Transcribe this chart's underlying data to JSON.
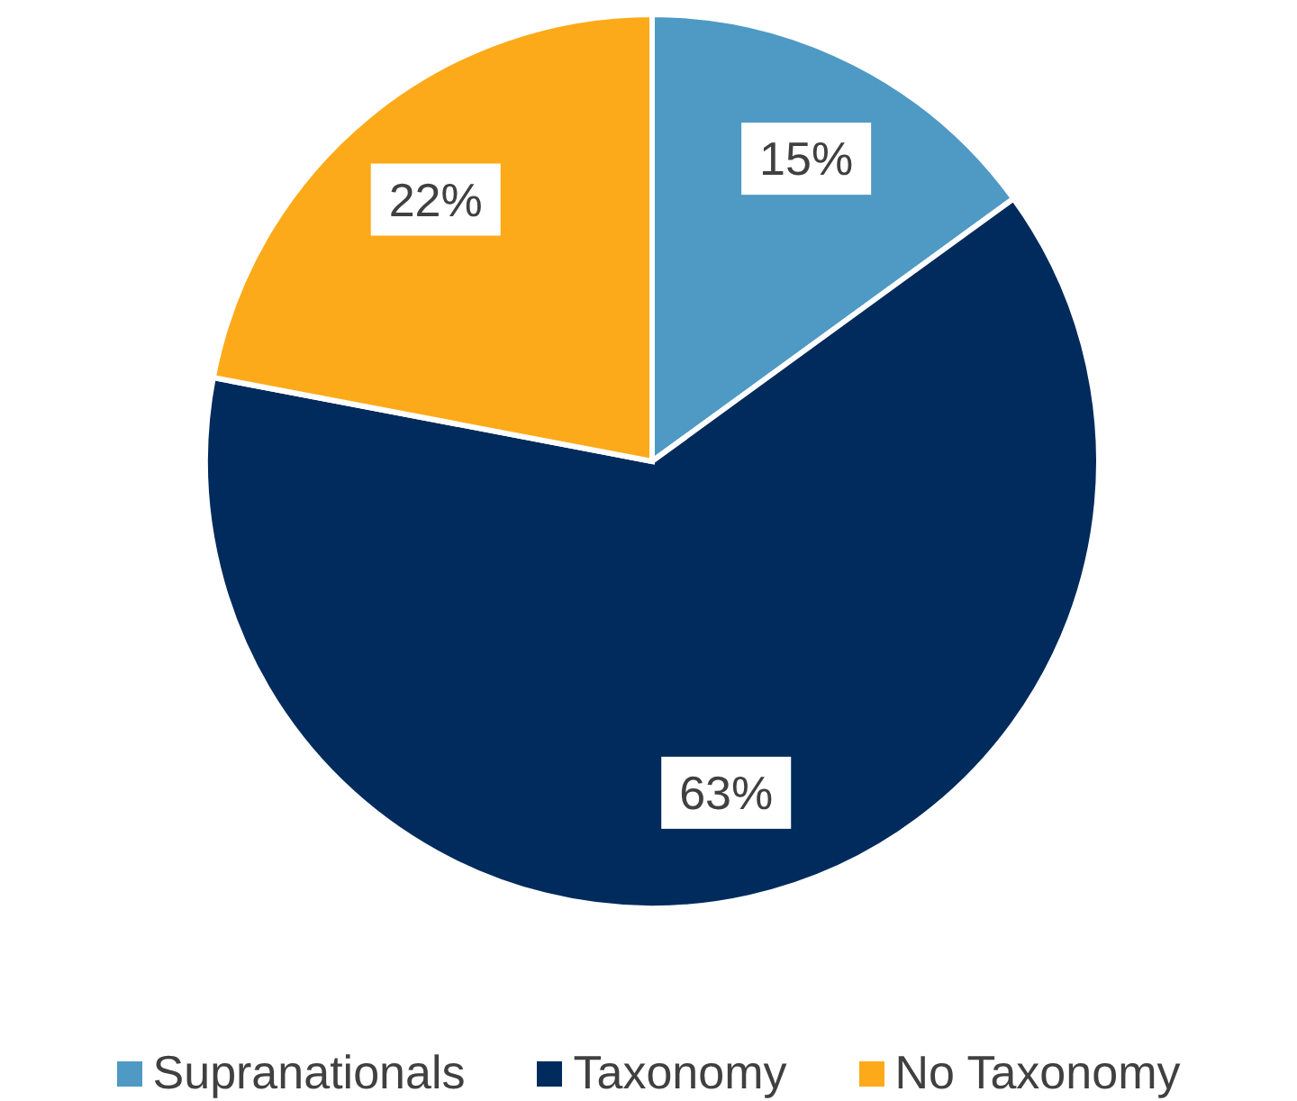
{
  "chart_data": {
    "type": "pie",
    "categories": [
      "Supranationals",
      "Taxonomy",
      "No Taxonomy"
    ],
    "values": [
      15,
      63,
      22
    ],
    "value_labels": [
      "15%",
      "63%",
      "22%"
    ],
    "colors": [
      "#4f9ac4",
      "#002b5c",
      "#fcaa1a"
    ],
    "legend": "bottom"
  }
}
